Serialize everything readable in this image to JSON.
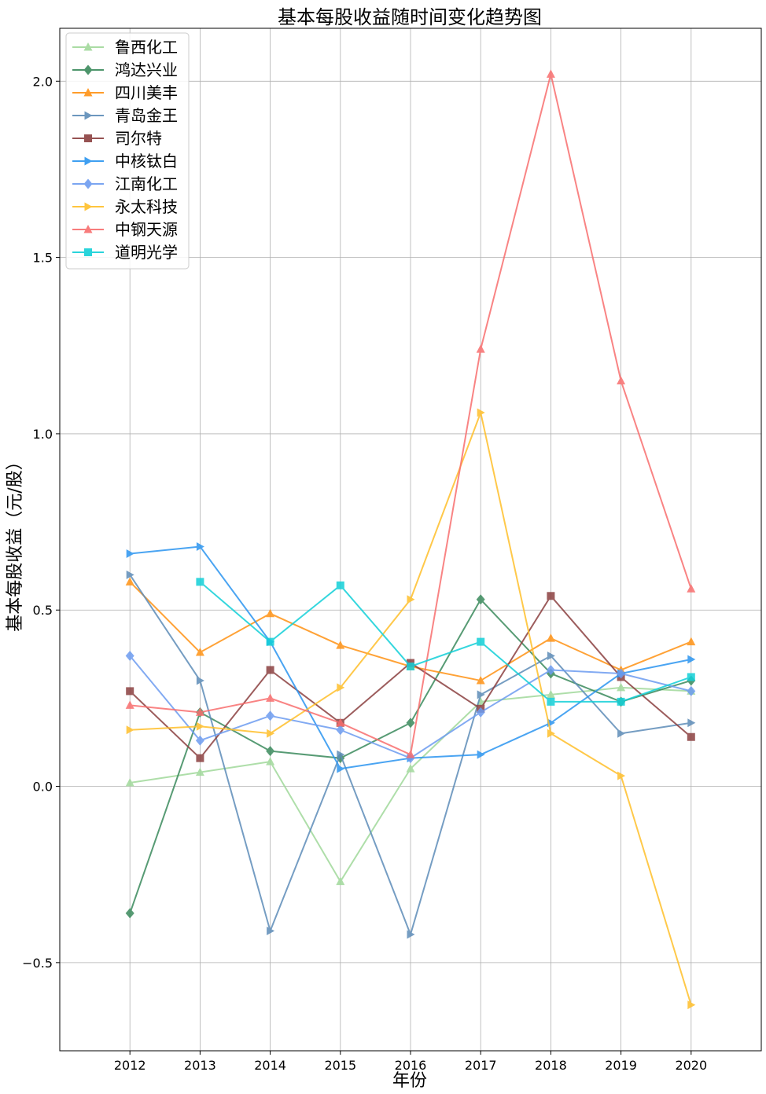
{
  "chart_data": {
    "type": "line",
    "title": "基本每股收益随时间变化趋势图",
    "xlabel": "年份",
    "ylabel": "基本每股收益（元/股）",
    "x": [
      2012,
      2013,
      2014,
      2015,
      2016,
      2017,
      2018,
      2019,
      2020
    ],
    "xlim": [
      2011,
      2021
    ],
    "ylim": [
      -0.75,
      2.15
    ],
    "yticks": [
      -0.5,
      0.0,
      0.5,
      1.0,
      1.5,
      2.0
    ],
    "ytick_labels": [
      "−0.5",
      "0.0",
      "0.5",
      "1.0",
      "1.5",
      "2.0"
    ],
    "grid": true,
    "legend_position": "top-left",
    "series": [
      {
        "name": "鲁西化工",
        "color": "#a1d99b",
        "marker": "triangle-up",
        "values": [
          0.01,
          0.04,
          0.07,
          -0.27,
          0.05,
          0.24,
          0.26,
          0.28,
          0.27
        ]
      },
      {
        "name": "鸿达兴业",
        "color": "#3a8a5c",
        "marker": "diamond",
        "values": [
          -0.36,
          0.21,
          0.1,
          0.08,
          0.18,
          0.53,
          0.32,
          0.24,
          0.3
        ]
      },
      {
        "name": "四川美丰",
        "color": "#ff9214",
        "marker": "triangle-up",
        "values": [
          0.58,
          0.38,
          0.49,
          0.4,
          0.34,
          0.3,
          0.42,
          0.33,
          0.41
        ]
      },
      {
        "name": "青岛金王",
        "color": "#5d8cb8",
        "marker": "triangle-right",
        "values": [
          0.6,
          0.3,
          -0.41,
          0.09,
          -0.42,
          0.26,
          0.37,
          0.15,
          0.18
        ]
      },
      {
        "name": "司尔特",
        "color": "#8b4040",
        "marker": "square",
        "values": [
          0.27,
          0.08,
          0.33,
          0.18,
          0.35,
          0.22,
          0.54,
          0.31,
          0.14
        ]
      },
      {
        "name": "中核钛白",
        "color": "#2b95f0",
        "marker": "triangle-right",
        "values": [
          0.66,
          0.68,
          0.41,
          0.05,
          0.08,
          0.09,
          0.18,
          0.32,
          0.36
        ]
      },
      {
        "name": "江南化工",
        "color": "#6d9cf0",
        "marker": "diamond",
        "values": [
          0.37,
          0.13,
          0.2,
          0.16,
          0.08,
          0.21,
          0.33,
          0.32,
          0.27
        ]
      },
      {
        "name": "永太科技",
        "color": "#ffbf2a",
        "marker": "triangle-right",
        "values": [
          0.16,
          0.17,
          0.15,
          0.28,
          0.53,
          1.06,
          0.15,
          0.03,
          -0.62
        ]
      },
      {
        "name": "中钢天源",
        "color": "#f86e6e",
        "marker": "triangle-up",
        "values": [
          0.23,
          0.21,
          0.25,
          0.18,
          0.09,
          1.24,
          2.02,
          1.15,
          0.56
        ]
      },
      {
        "name": "道明光学",
        "color": "#12d0d8",
        "marker": "square",
        "values": [
          null,
          0.58,
          0.41,
          0.57,
          0.34,
          0.41,
          0.24,
          0.24,
          0.31
        ]
      }
    ]
  }
}
